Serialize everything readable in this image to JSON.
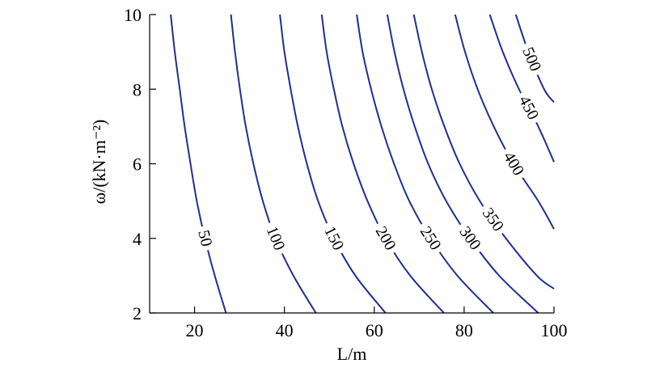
{
  "chart_data": {
    "type": "contour",
    "xlabel": "L/m",
    "ylabel": "ω/(kN·m⁻²)",
    "xlim": [
      10,
      100
    ],
    "ylim": [
      2,
      10
    ],
    "xticks": [
      20,
      40,
      60,
      80,
      100
    ],
    "yticks": [
      2,
      4,
      6,
      8,
      10
    ],
    "grid": false,
    "line_color": "#1f2f8f",
    "levels": [
      {
        "label": "50",
        "points": [
          [
            27.0,
            2
          ],
          [
            24.5,
            3
          ],
          [
            22.3,
            4
          ],
          [
            20.5,
            5
          ],
          [
            19.1,
            6
          ],
          [
            17.8,
            7
          ],
          [
            16.7,
            8
          ],
          [
            15.6,
            9
          ],
          [
            14.7,
            10
          ]
        ]
      },
      {
        "label": "100",
        "points": [
          [
            47.0,
            2
          ],
          [
            42.0,
            3
          ],
          [
            38.0,
            4
          ],
          [
            35.2,
            5
          ],
          [
            33.1,
            6
          ],
          [
            31.4,
            7
          ],
          [
            30.1,
            8
          ],
          [
            29.0,
            9
          ],
          [
            28.1,
            10
          ]
        ]
      },
      {
        "label": "150",
        "points": [
          [
            62.5,
            2
          ],
          [
            55.8,
            3
          ],
          [
            51.0,
            4
          ],
          [
            47.5,
            5
          ],
          [
            45.0,
            6
          ],
          [
            43.0,
            7
          ],
          [
            41.4,
            8
          ],
          [
            40.0,
            9
          ],
          [
            39.0,
            10
          ]
        ]
      },
      {
        "label": "200",
        "points": [
          [
            75.5,
            2
          ],
          [
            68.0,
            3
          ],
          [
            62.5,
            4
          ],
          [
            58.5,
            5
          ],
          [
            55.4,
            6
          ],
          [
            52.9,
            7
          ],
          [
            51.0,
            8
          ],
          [
            49.4,
            9
          ],
          [
            48.3,
            10
          ]
        ]
      },
      {
        "label": "250",
        "points": [
          [
            86.5,
            2
          ],
          [
            78.5,
            3
          ],
          [
            72.5,
            4
          ],
          [
            67.8,
            5
          ],
          [
            64.4,
            6
          ],
          [
            61.6,
            7
          ],
          [
            59.3,
            8
          ],
          [
            57.4,
            9
          ],
          [
            56.1,
            10
          ]
        ]
      },
      {
        "label": "300",
        "points": [
          [
            96.5,
            2
          ],
          [
            87.8,
            3
          ],
          [
            81.3,
            4
          ],
          [
            76.0,
            5
          ],
          [
            72.0,
            6
          ],
          [
            69.0,
            7
          ],
          [
            66.5,
            8
          ],
          [
            64.5,
            9
          ],
          [
            62.9,
            10
          ]
        ]
      },
      {
        "label": "350",
        "points": [
          [
            100,
            2.65
          ],
          [
            96.2,
            3
          ],
          [
            89.3,
            4
          ],
          [
            83.5,
            5
          ],
          [
            79.0,
            6
          ],
          [
            75.6,
            7
          ],
          [
            72.8,
            8
          ],
          [
            70.6,
            9
          ],
          [
            68.8,
            10
          ]
        ]
      },
      {
        "label": "400",
        "points": [
          [
            100,
            4.25
          ],
          [
            96.5,
            5
          ],
          [
            91.0,
            6
          ],
          [
            86.6,
            7
          ],
          [
            83.0,
            8
          ],
          [
            80.2,
            9
          ],
          [
            78.0,
            10
          ]
        ]
      },
      {
        "label": "450",
        "points": [
          [
            100,
            6.05
          ],
          [
            96.5,
            7
          ],
          [
            92.2,
            8
          ],
          [
            88.6,
            9
          ],
          [
            85.7,
            10
          ]
        ]
      },
      {
        "label": "500",
        "points": [
          [
            100,
            7.65
          ],
          [
            97.8,
            8
          ],
          [
            94.3,
            9
          ],
          [
            91.5,
            10
          ]
        ]
      }
    ],
    "label_positions": [
      {
        "label": "50",
        "x": 22.5,
        "y": 4.0
      },
      {
        "label": "100",
        "x": 38.5,
        "y": 4.0
      },
      {
        "label": "150",
        "x": 51.5,
        "y": 4.0
      },
      {
        "label": "200",
        "x": 63.0,
        "y": 4.0
      },
      {
        "label": "250",
        "x": 73.0,
        "y": 4.0
      },
      {
        "label": "300",
        "x": 81.5,
        "y": 4.0
      },
      {
        "label": "350",
        "x": 88.5,
        "y": 4.5
      },
      {
        "label": "400",
        "x": 90.5,
        "y": 6.0
      },
      {
        "label": "450",
        "x": 93.0,
        "y": 7.5
      },
      {
        "label": "500",
        "x": 94.5,
        "y": 8.8
      }
    ]
  }
}
